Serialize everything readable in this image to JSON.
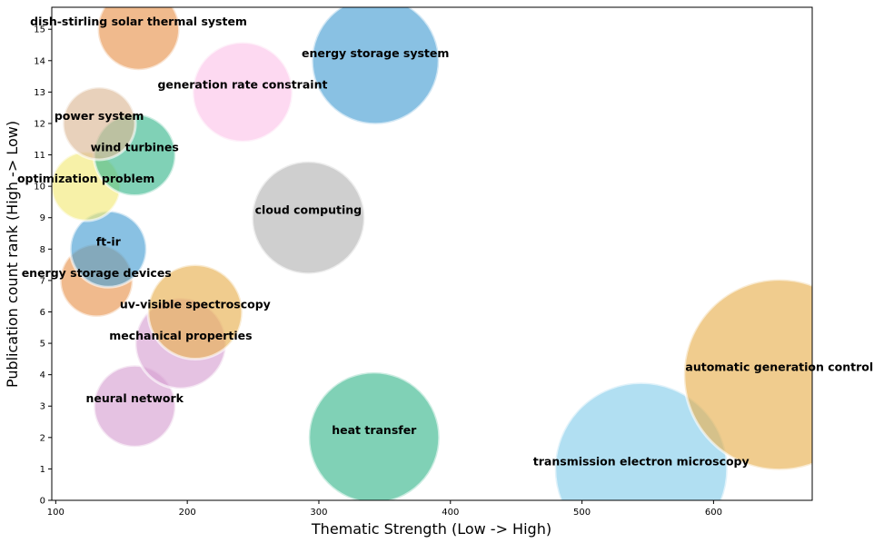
{
  "chart_data": {
    "type": "scatter",
    "title": "",
    "xlabel": "Thematic Strength (Low -> High)",
    "ylabel": "Publication count rank (High -> Low)",
    "xlim": [
      97,
      675
    ],
    "ylim": [
      0,
      15.7
    ],
    "xticks": [
      100,
      200,
      300,
      400,
      500,
      600
    ],
    "yticks": [
      0,
      1,
      2,
      3,
      4,
      5,
      6,
      7,
      8,
      9,
      10,
      11,
      12,
      13,
      14,
      15
    ],
    "grid": false,
    "legend": "none",
    "points": [
      {
        "label": "transmission electron microscopy",
        "x": 545,
        "y": 1,
        "size": 95,
        "color": "#87ceeb"
      },
      {
        "label": "heat transfer",
        "x": 342,
        "y": 2,
        "size": 72,
        "color": "#3cb88f"
      },
      {
        "label": "neural network",
        "x": 160,
        "y": 3,
        "size": 45,
        "color": "#d7a2d3"
      },
      {
        "label": "automatic generation control",
        "x": 650,
        "y": 4,
        "size": 105,
        "color": "#e8b052"
      },
      {
        "label": "mechanical properties",
        "x": 195,
        "y": 5,
        "size": 50,
        "color": "#d7a2d3"
      },
      {
        "label": "uv-visible spectroscopy",
        "x": 206,
        "y": 6,
        "size": 52,
        "color": "#e8b052"
      },
      {
        "label": "energy storage devices",
        "x": 131,
        "y": 7,
        "size": 40,
        "color": "#e89550"
      },
      {
        "label": "ft-ir",
        "x": 140,
        "y": 8,
        "size": 42,
        "color": "#4a9fd4"
      },
      {
        "label": "cloud computing",
        "x": 292,
        "y": 9,
        "size": 62,
        "color": "#b5b5b5"
      },
      {
        "label": "optimization problem",
        "x": 123,
        "y": 10,
        "size": 38,
        "color": "#f2ea7a"
      },
      {
        "label": "wind turbines",
        "x": 160,
        "y": 11,
        "size": 45,
        "color": "#3cb88f"
      },
      {
        "label": "power system",
        "x": 133,
        "y": 12,
        "size": 40,
        "color": "#dcb896"
      },
      {
        "label": "generation rate constraint",
        "x": 242,
        "y": 13,
        "size": 55,
        "color": "#fcc4ea"
      },
      {
        "label": "energy storage system",
        "x": 343,
        "y": 14,
        "size": 70,
        "color": "#4a9fd4"
      },
      {
        "label": "dish-stirling solar thermal system",
        "x": 163,
        "y": 15,
        "size": 45,
        "color": "#e89550"
      }
    ]
  }
}
